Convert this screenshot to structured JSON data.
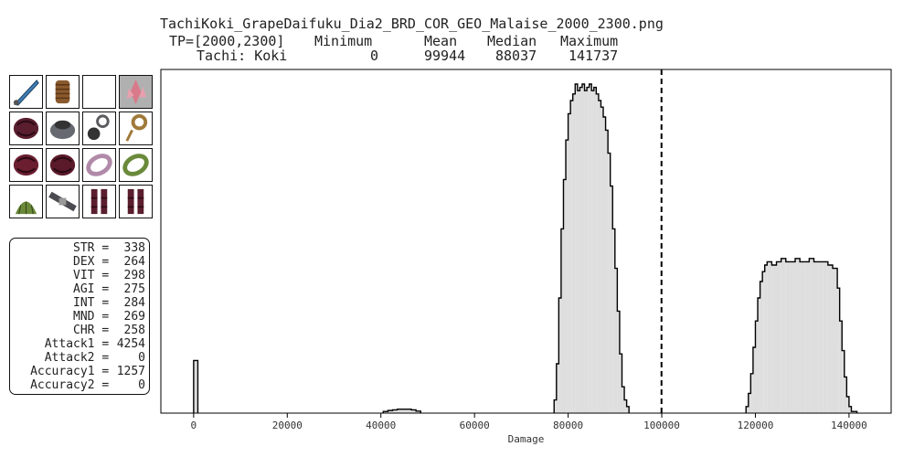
{
  "header": {
    "title": "TachiKoki_GrapeDaifuku_Dia2_BRD_COR_GEO_Malaise_2000_2300.png",
    "row1": [
      "TP=[2000,2300]",
      "Minimum",
      "Mean",
      "Median",
      "Maximum"
    ],
    "row2": [
      "Tachi: Koki",
      "0",
      "99944",
      "88037",
      "141737"
    ]
  },
  "equipment": [
    {
      "name": "sword-icon",
      "color": "#3f7fb8"
    },
    {
      "name": "spool-ammo-icon",
      "color": "#8a5a2e"
    },
    {
      "name": "empty-slot",
      "color": "#ffffff"
    },
    {
      "name": "crystal-icon",
      "color": "#d87a8a"
    },
    {
      "name": "helm-icon",
      "color": "#5a1e2e"
    },
    {
      "name": "necklace-icon",
      "color": "#666a70"
    },
    {
      "name": "earring-icon",
      "color": "#5c5c60"
    },
    {
      "name": "earring-gold-icon",
      "color": "#a07a3a"
    },
    {
      "name": "body-armor-icon",
      "color": "#6a1e30"
    },
    {
      "name": "gloves-icon",
      "color": "#5a1a2a"
    },
    {
      "name": "ring-icon",
      "color": "#b08aa8"
    },
    {
      "name": "ring-green-icon",
      "color": "#6a8a3a"
    },
    {
      "name": "cape-icon",
      "color": "#6a8a3a"
    },
    {
      "name": "belt-icon",
      "color": "#4a4a50"
    },
    {
      "name": "legs-icon",
      "color": "#5a1e2e"
    },
    {
      "name": "boots-icon",
      "color": "#5a1e2e"
    }
  ],
  "stats": [
    {
      "label": "STR",
      "value": "338"
    },
    {
      "label": "DEX",
      "value": "264"
    },
    {
      "label": "VIT",
      "value": "298"
    },
    {
      "label": "AGI",
      "value": "275"
    },
    {
      "label": "INT",
      "value": "284"
    },
    {
      "label": "MND",
      "value": "269"
    },
    {
      "label": "CHR",
      "value": "258"
    },
    {
      "label": "Attack1",
      "value": "4254"
    },
    {
      "label": "Attack2",
      "value": "0"
    },
    {
      "label": "Accuracy1",
      "value": "1257"
    },
    {
      "label": "Accuracy2",
      "value": "0"
    }
  ],
  "chart_data": {
    "type": "histogram",
    "xlabel": "Damage",
    "ylabel": "",
    "xlim": [
      -7000,
      149000
    ],
    "xticks": [
      0,
      20000,
      40000,
      60000,
      80000,
      100000,
      120000,
      140000
    ],
    "xtick_labels": [
      "0",
      "20000",
      "40000",
      "60000",
      "80000",
      "100000",
      "120000",
      "140000"
    ],
    "mean_line": 99944,
    "fill_color": "#dedede",
    "edge_color": "#000000",
    "bins": [
      [
        0,
        900,
        0.16
      ],
      [
        40500,
        41500,
        0.005
      ],
      [
        41500,
        42500,
        0.008
      ],
      [
        42500,
        43500,
        0.01
      ],
      [
        43500,
        44500,
        0.012
      ],
      [
        44500,
        45500,
        0.012
      ],
      [
        45500,
        46500,
        0.012
      ],
      [
        46500,
        47500,
        0.01
      ],
      [
        47500,
        48500,
        0.006
      ],
      [
        77000,
        77500,
        0.04
      ],
      [
        77500,
        78000,
        0.15
      ],
      [
        78000,
        78500,
        0.35
      ],
      [
        78500,
        79000,
        0.56
      ],
      [
        79000,
        79500,
        0.71
      ],
      [
        79500,
        80000,
        0.83
      ],
      [
        80000,
        80500,
        0.91
      ],
      [
        80500,
        81000,
        0.95
      ],
      [
        81000,
        81500,
        0.97
      ],
      [
        81500,
        82000,
        1.0
      ],
      [
        82000,
        82500,
        0.98
      ],
      [
        82500,
        83000,
        0.99
      ],
      [
        83000,
        83500,
        1.0
      ],
      [
        83500,
        84000,
        0.98
      ],
      [
        84000,
        84500,
        0.99
      ],
      [
        84500,
        85000,
        1.0
      ],
      [
        85000,
        85500,
        0.98
      ],
      [
        85500,
        86000,
        0.99
      ],
      [
        86000,
        86500,
        0.97
      ],
      [
        86500,
        87000,
        0.95
      ],
      [
        87000,
        87500,
        0.93
      ],
      [
        87500,
        88000,
        0.9
      ],
      [
        88000,
        88500,
        0.86
      ],
      [
        88500,
        89000,
        0.79
      ],
      [
        89000,
        89500,
        0.69
      ],
      [
        89500,
        90000,
        0.56
      ],
      [
        90000,
        90500,
        0.44
      ],
      [
        90500,
        91000,
        0.31
      ],
      [
        91000,
        91500,
        0.18
      ],
      [
        91500,
        92000,
        0.08
      ],
      [
        92000,
        92500,
        0.04
      ],
      [
        92500,
        93000,
        0.02
      ],
      [
        118000,
        118500,
        0.02
      ],
      [
        118500,
        119000,
        0.06
      ],
      [
        119000,
        119500,
        0.12
      ],
      [
        119500,
        120000,
        0.2
      ],
      [
        120000,
        120500,
        0.28
      ],
      [
        120500,
        121000,
        0.35
      ],
      [
        121000,
        121500,
        0.4
      ],
      [
        121500,
        122000,
        0.43
      ],
      [
        122000,
        122500,
        0.45
      ],
      [
        122500,
        123500,
        0.46
      ],
      [
        123500,
        124500,
        0.45
      ],
      [
        124500,
        125500,
        0.46
      ],
      [
        125500,
        126500,
        0.47
      ],
      [
        126500,
        127500,
        0.46
      ],
      [
        127500,
        128500,
        0.46
      ],
      [
        128500,
        129500,
        0.47
      ],
      [
        129500,
        130500,
        0.46
      ],
      [
        130500,
        131500,
        0.46
      ],
      [
        131500,
        132500,
        0.47
      ],
      [
        132500,
        133500,
        0.46
      ],
      [
        133500,
        134500,
        0.46
      ],
      [
        134500,
        135500,
        0.46
      ],
      [
        135500,
        136500,
        0.45
      ],
      [
        136500,
        137500,
        0.44
      ],
      [
        137500,
        138000,
        0.38
      ],
      [
        138000,
        138500,
        0.28
      ],
      [
        138500,
        139000,
        0.19
      ],
      [
        139000,
        139500,
        0.11
      ],
      [
        139500,
        140000,
        0.05
      ],
      [
        140000,
        140500,
        0.02
      ],
      [
        140500,
        141700,
        0.005
      ]
    ]
  }
}
